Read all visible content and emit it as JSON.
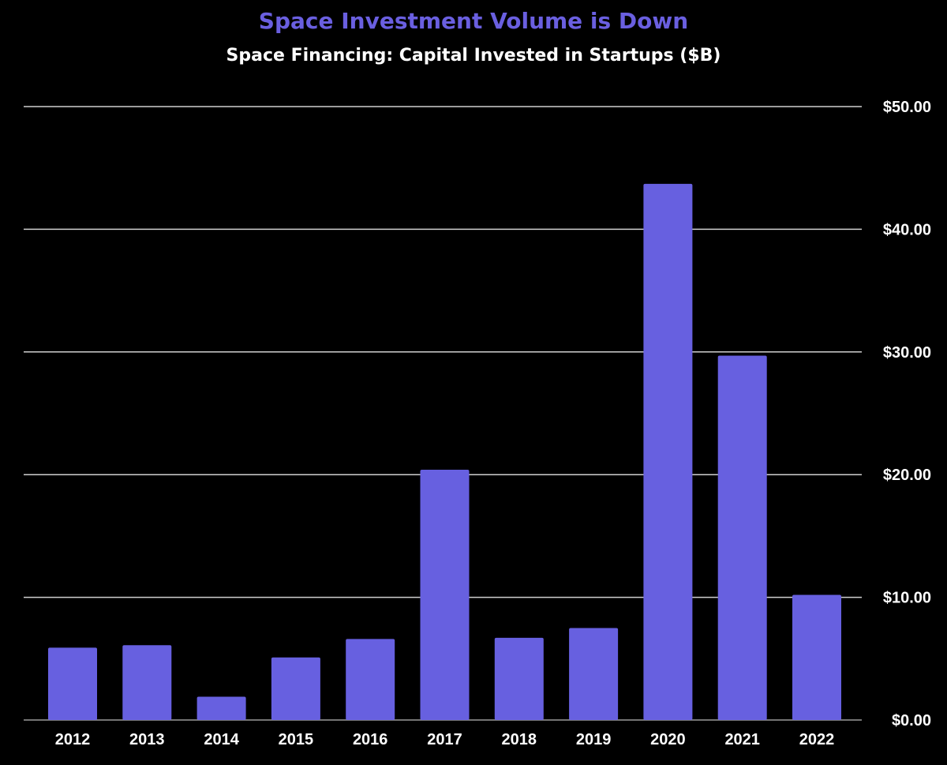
{
  "colors": {
    "background": "#000000",
    "bar": "#6760e0",
    "title": "#6a5fe0",
    "gridline": "#cfcfcf",
    "text": "#ffffff"
  },
  "chart_data": {
    "type": "bar",
    "title": "Space Investment Volume is Down",
    "subtitle": "Space Financing: Capital Invested in Startups ($B)",
    "categories": [
      "2012",
      "2013",
      "2014",
      "2015",
      "2016",
      "2017",
      "2018",
      "2019",
      "2020",
      "2021",
      "2022"
    ],
    "values": [
      5.9,
      6.1,
      1.9,
      5.1,
      6.6,
      20.4,
      6.7,
      7.5,
      43.7,
      29.7,
      10.2
    ],
    "ylim": [
      0,
      50
    ],
    "yticks": [
      0,
      10,
      20,
      30,
      40,
      50
    ],
    "ytick_labels": [
      "$0.00",
      "$10.00",
      "$20.00",
      "$30.00",
      "$40.00",
      "$50.00"
    ],
    "y_axis_side": "right",
    "grid": true,
    "legend": "none"
  }
}
